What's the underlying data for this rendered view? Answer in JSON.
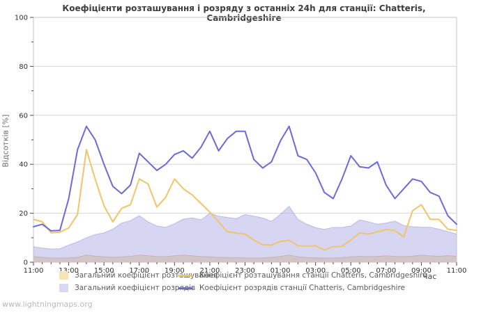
{
  "title": "Коефіцієнти розташування і розряду з останніх 24h для станції: Chatteris, Cambridgeshire",
  "watermark": "www.lightningmaps.org",
  "chart_data": {
    "type": "area",
    "title": "Коефіцієнти розташування і розряду з останніх 24h для станції: Chatteris, Cambridgeshire",
    "xlabel": "Час",
    "ylabel": "Відсотків  [%]",
    "ylim": [
      0,
      100
    ],
    "y_major_ticks": [
      0,
      20,
      40,
      60,
      80,
      100
    ],
    "y_minor_ticks": [
      10,
      30,
      50,
      70,
      90
    ],
    "grid": "horizontal-major",
    "legend_position": "bottom",
    "x_major_tick_labels": [
      "11:00",
      "13:00",
      "15:00",
      "17:00",
      "19:00",
      "21:00",
      "23:00",
      "01:00",
      "03:00",
      "05:00",
      "07:00",
      "09:00",
      "11:00"
    ],
    "x": [
      "11:00",
      "11:30",
      "12:00",
      "12:30",
      "13:00",
      "13:30",
      "14:00",
      "14:30",
      "15:00",
      "15:30",
      "16:00",
      "16:30",
      "17:00",
      "17:30",
      "18:00",
      "18:30",
      "19:00",
      "19:30",
      "20:00",
      "20:30",
      "21:00",
      "21:30",
      "22:00",
      "22:30",
      "23:00",
      "23:30",
      "00:00",
      "00:30",
      "01:00",
      "01:30",
      "02:00",
      "02:30",
      "03:00",
      "03:30",
      "04:00",
      "04:30",
      "05:00",
      "05:30",
      "06:00",
      "06:30",
      "07:00",
      "07:30",
      "08:00",
      "08:30",
      "09:00",
      "09:30",
      "10:00",
      "10:30",
      "11:00"
    ],
    "series": [
      {
        "name": "Загальний коефіцієнт розташування",
        "type": "area",
        "color": "#f9e2b3",
        "fill": "#f8e0b0",
        "edge": "#dcbe93",
        "values": [
          2.3,
          2.0,
          1.8,
          1.7,
          1.8,
          2.0,
          2.9,
          2.5,
          2.2,
          2.0,
          2.2,
          2.4,
          2.9,
          2.6,
          2.3,
          2.3,
          2.6,
          2.9,
          2.6,
          2.3,
          2.2,
          2.0,
          1.9,
          1.9,
          1.8,
          1.8,
          1.8,
          2.0,
          2.4,
          2.9,
          2.2,
          1.9,
          1.8,
          1.7,
          1.8,
          1.9,
          2.2,
          2.4,
          2.3,
          2.4,
          2.6,
          2.4,
          2.3,
          2.5,
          2.9,
          2.6,
          2.4,
          2.7,
          2.4
        ]
      },
      {
        "name": "Загальний коефіцієнт розрядів",
        "type": "area",
        "color": "#d8d8f6",
        "fill": "rgba(165,165,228,0.46)",
        "edge": "rgba(148,148,218,0.55)",
        "values": [
          6.3,
          5.8,
          5.4,
          5.5,
          7.0,
          8.3,
          10.0,
          11.3,
          12.0,
          13.5,
          16.0,
          17.0,
          19.0,
          16.5,
          14.8,
          14.3,
          15.7,
          17.6,
          18.1,
          17.3,
          20.0,
          18.8,
          18.3,
          17.8,
          19.5,
          18.8,
          18.1,
          16.7,
          19.5,
          22.8,
          17.5,
          15.5,
          14.1,
          13.4,
          14.2,
          14.2,
          14.8,
          17.3,
          16.5,
          15.5,
          16.0,
          16.8,
          15.0,
          14.5,
          14.3,
          14.3,
          13.5,
          12.5,
          11.5
        ]
      },
      {
        "name": "Коефіцієнт розташування станції Chatteris, Cambridgeshire",
        "type": "line",
        "color": "#f2c469",
        "values": [
          17.5,
          16.5,
          12.0,
          12.3,
          14.0,
          19.5,
          46.0,
          34.0,
          23.0,
          16.5,
          22.0,
          23.5,
          34.0,
          32.0,
          22.5,
          26.5,
          34.0,
          30.0,
          27.5,
          24.0,
          20.5,
          16.5,
          12.5,
          11.9,
          11.5,
          9.0,
          7.2,
          7.0,
          8.5,
          9.0,
          6.7,
          6.5,
          6.7,
          5.0,
          6.3,
          6.5,
          9.1,
          12.0,
          11.5,
          12.4,
          13.4,
          12.9,
          10.3,
          21.0,
          23.5,
          17.5,
          17.5,
          13.5,
          13.0
        ]
      },
      {
        "name": "Коефіцієнт розрядів станції Chatteris, Cambridgeshire",
        "type": "line",
        "color": "#6a6ada",
        "values": [
          14.5,
          15.5,
          12.8,
          13.0,
          26.0,
          46.0,
          55.5,
          50.0,
          40.0,
          31.0,
          28.0,
          31.5,
          44.5,
          41.0,
          37.5,
          40.0,
          44.0,
          45.5,
          42.5,
          47.0,
          53.5,
          45.5,
          50.5,
          53.5,
          53.5,
          42.0,
          38.5,
          41.0,
          49.5,
          55.5,
          43.5,
          42.0,
          36.5,
          28.5,
          26.0,
          34.0,
          43.5,
          39.0,
          38.5,
          41.0,
          31.5,
          26.0,
          30.0,
          34.0,
          33.0,
          28.5,
          27.0,
          19.0,
          15.5
        ]
      }
    ]
  },
  "colors": {
    "grid": "#d4d4d4",
    "plot_border": "#c4c4c4",
    "tick": "#4a4a4a",
    "tick_label": "#2e2e2e"
  }
}
